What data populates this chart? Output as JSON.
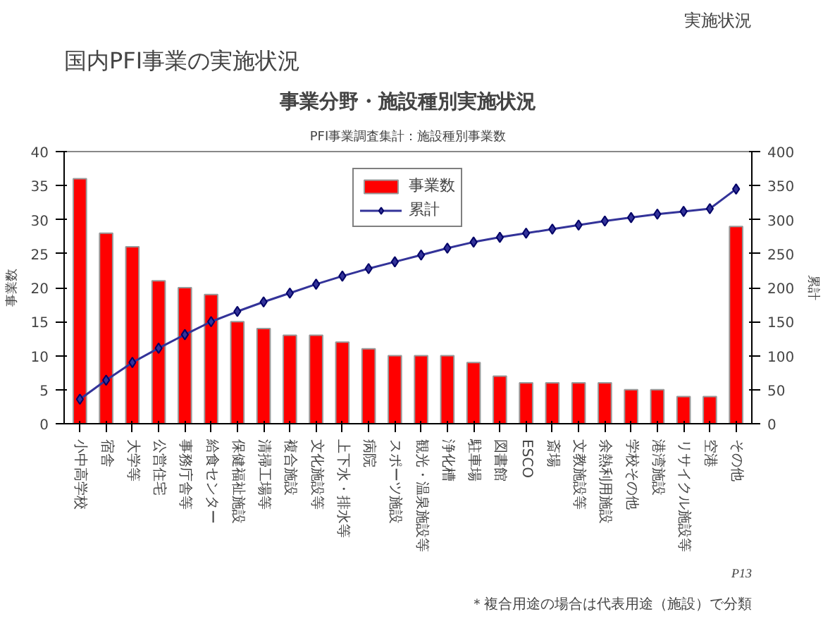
{
  "chart_data": {
    "type": "bar",
    "title": "国内PFI事業の実施状況",
    "subtitle": "事業分野・施設種別実施状況",
    "annotations": [
      "実施状況",
      "PFI事業調査集計：施設種別事業数",
      "＊複合用途の場合は代表用途（施設）で分類",
      "P13"
    ],
    "ylabel": "事業数",
    "y2label": "累計",
    "categories": [
      "小中高学校",
      "宿舎",
      "大学等",
      "公営住宅",
      "事務庁舎等",
      "給食センター",
      "保健福祉施設",
      "清掃工場等",
      "複合施設",
      "文化施設等",
      "上下水・排水等",
      "病院",
      "スポーツ施設",
      "観光・温泉施設等",
      "浄化槽",
      "駐車場",
      "図書館",
      "ESCO",
      "斎場",
      "文教施設等",
      "余熱利用施設",
      "学校その他",
      "港湾施設",
      "リサイクル施設等",
      "空港",
      "その他"
    ],
    "series": [
      {
        "name": "事業数",
        "color": "#ff0000",
        "values": [
          36,
          28,
          26,
          21,
          20,
          19,
          15,
          14,
          13,
          13,
          12,
          11,
          10,
          10,
          10,
          9,
          7,
          6,
          6,
          6,
          6,
          5,
          5,
          4,
          4,
          29
        ]
      },
      {
        "name": "累計",
        "type": "line",
        "axis": "y2",
        "color": "#333399",
        "marker": "diamond",
        "values": [
          36,
          64,
          90,
          111,
          131,
          150,
          165,
          179,
          192,
          205,
          217,
          228,
          238,
          248,
          258,
          267,
          274,
          280,
          286,
          292,
          298,
          303,
          308,
          312,
          316,
          345
        ]
      }
    ],
    "ylim": [
      0,
      40
    ],
    "yticks": [
      0,
      5,
      10,
      15,
      20,
      25,
      30,
      35,
      40
    ],
    "y2lim": [
      0,
      400
    ],
    "y2ticks": [
      0,
      50,
      100,
      150,
      200,
      250,
      300,
      350,
      400
    ],
    "grid": false,
    "legend": "top center"
  }
}
